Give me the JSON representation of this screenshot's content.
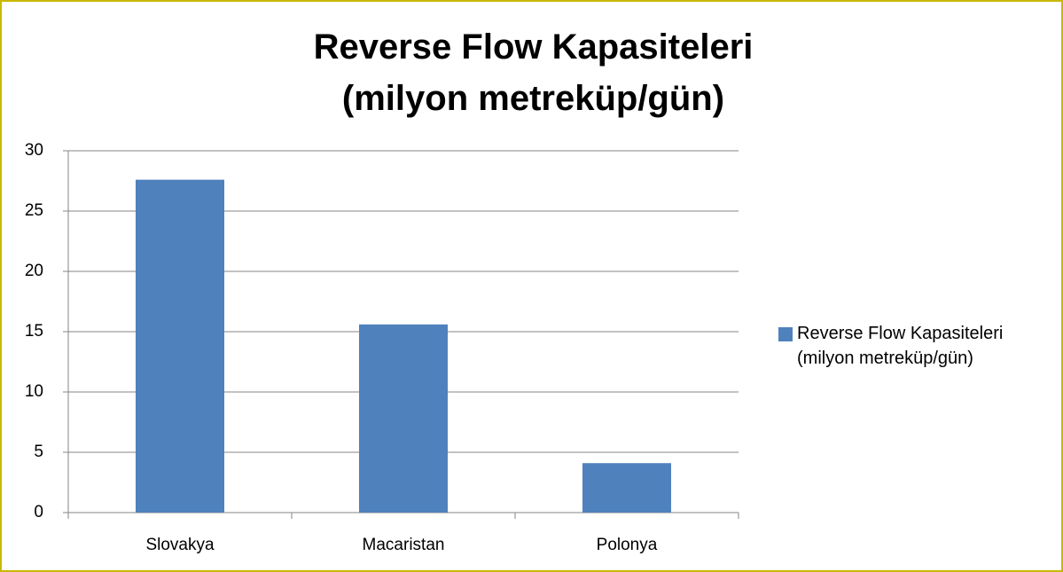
{
  "chart_data": {
    "type": "bar",
    "title": "Reverse Flow Kapasiteleri\n(milyon metreküp/gün)",
    "categories": [
      "Slovakya",
      "Macaristan",
      "Polonya"
    ],
    "series": [
      {
        "name": "Reverse Flow Kapasiteleri (milyon metreküp/gün)",
        "color": "#4f81bd",
        "values": [
          27.6,
          15.6,
          4.1
        ]
      }
    ],
    "ylim": [
      0,
      30
    ],
    "yticks": [
      0,
      5,
      10,
      15,
      20,
      25,
      30
    ],
    "grid": true,
    "legend": "right"
  }
}
